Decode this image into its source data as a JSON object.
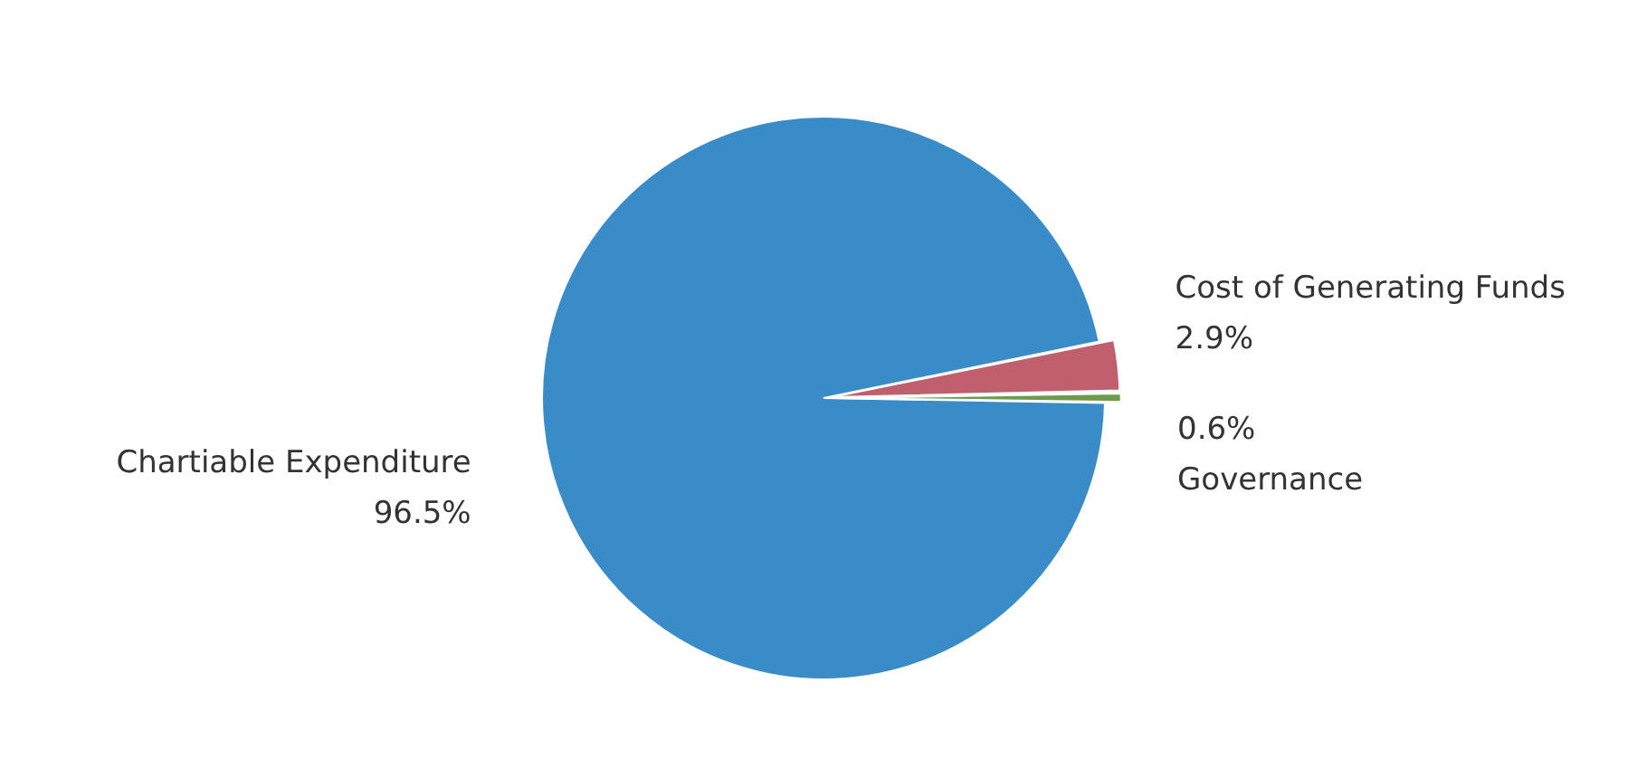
{
  "chart_data": {
    "type": "pie",
    "categories": [
      "Chartiable Expenditure",
      "Cost of Generating Funds",
      "Governance"
    ],
    "values": [
      96.5,
      2.9,
      0.6
    ],
    "colors": [
      "#3a8cc8",
      "#c0606e",
      "#6e9a4e"
    ],
    "value_labels": [
      "96.5%",
      "2.9%",
      "0.6%"
    ],
    "legend": false
  }
}
